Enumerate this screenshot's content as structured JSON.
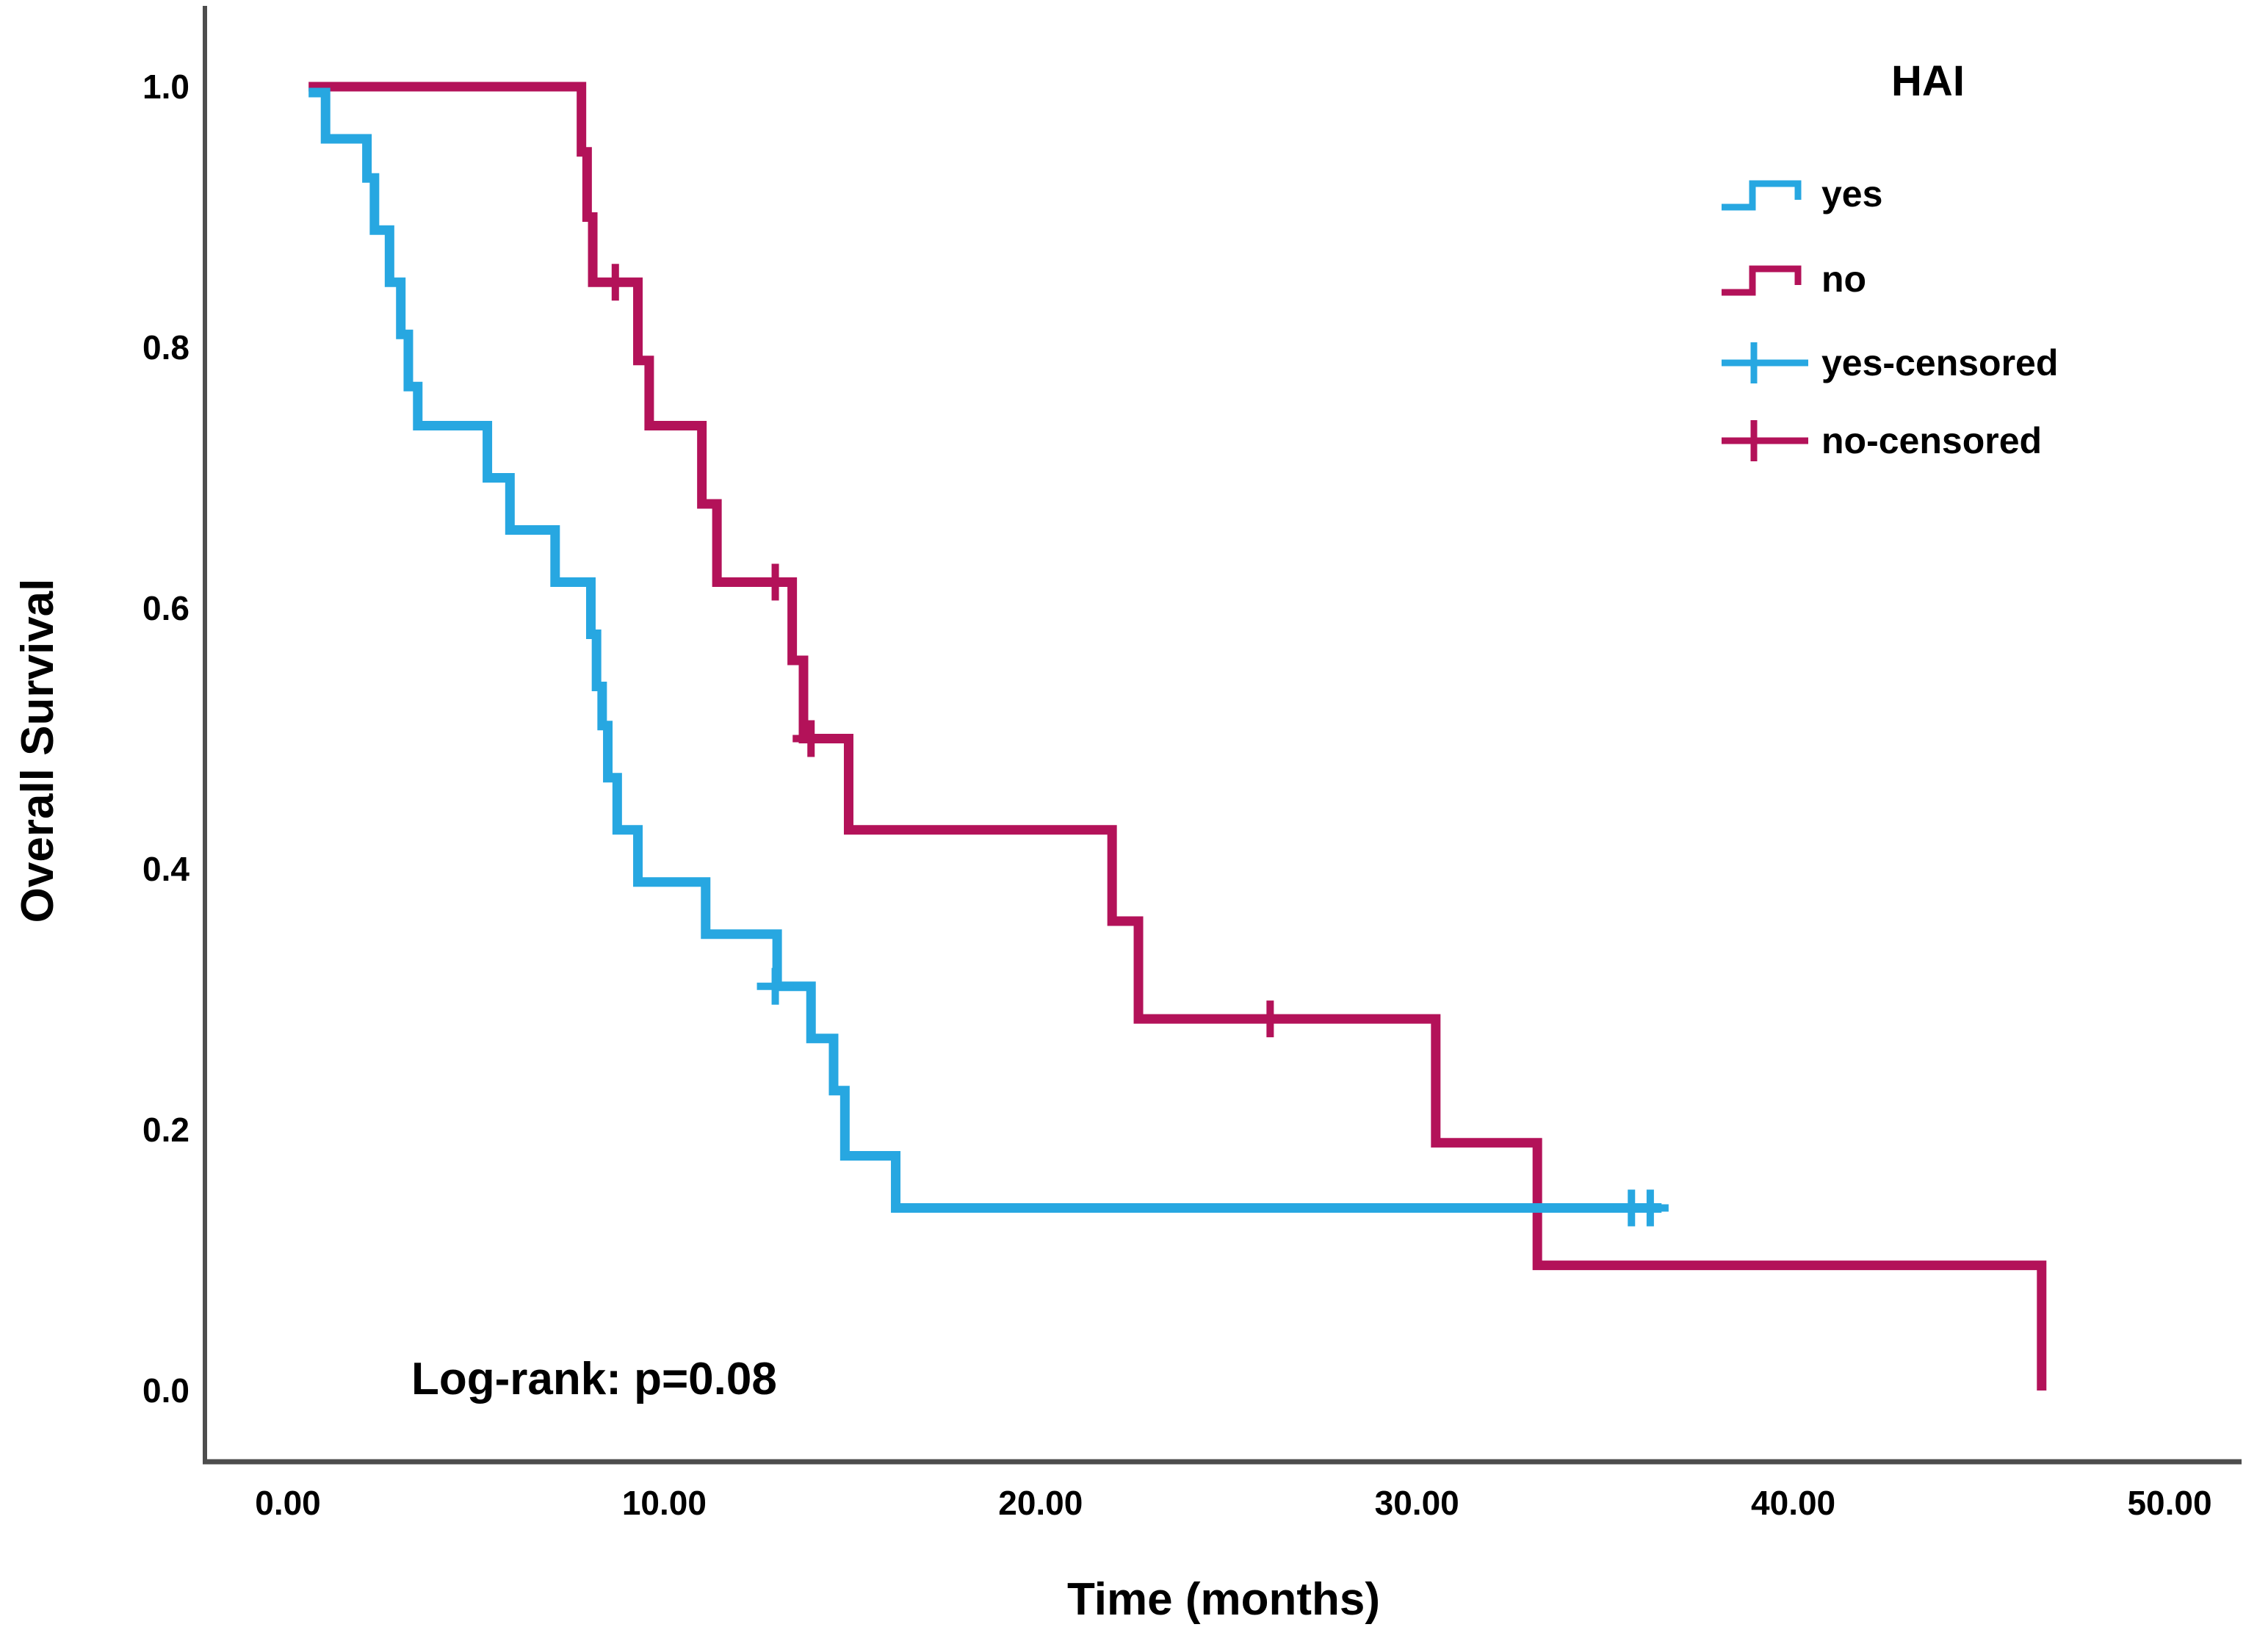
{
  "page": {
    "background": "#ffffff"
  },
  "legend": {
    "title": "HAI",
    "items": [
      {
        "id": "yes",
        "label": "yes",
        "type": "step",
        "color": "#27A7E1"
      },
      {
        "id": "no",
        "label": "no",
        "type": "step",
        "color": "#B31259"
      },
      {
        "id": "yes-censored",
        "label": "yes-censored",
        "type": "censor",
        "color": "#27A7E1"
      },
      {
        "id": "no-censored",
        "label": "no-censored",
        "type": "censor",
        "color": "#B31259"
      }
    ]
  },
  "chart_data": {
    "type": "line",
    "subtype": "kaplan-meier-step",
    "title": "",
    "xlabel": "Time (months)",
    "ylabel": "Overall Survival",
    "annotation": "Log-rank: p=0.08",
    "grid": false,
    "legend_position": "top-right",
    "xlim": [
      -2.2,
      52
    ],
    "ylim": [
      0.0,
      1.0
    ],
    "x_ticks": [
      {
        "v": 0,
        "label": "0.00"
      },
      {
        "v": 10,
        "label": "10.00"
      },
      {
        "v": 20,
        "label": "20.00"
      },
      {
        "v": 30,
        "label": "30.00"
      },
      {
        "v": 40,
        "label": "40.00"
      },
      {
        "v": 50,
        "label": "50.00"
      }
    ],
    "y_ticks": [
      {
        "v": 1.0,
        "label": "1.0"
      },
      {
        "v": 0.8,
        "label": "0.8"
      },
      {
        "v": 0.6,
        "label": "0.6"
      },
      {
        "v": 0.4,
        "label": "0.4"
      },
      {
        "v": 0.2,
        "label": "0.2"
      },
      {
        "v": 0.0,
        "label": "0.0"
      }
    ],
    "series": [
      {
        "name": "no",
        "group": "HAI = no",
        "color": "#B31259",
        "start": {
          "t": 0.55,
          "s": 1.0
        },
        "end_t": 46.65,
        "steps": [
          {
            "t": 7.8,
            "s": 0.95
          },
          {
            "t": 7.95,
            "s": 0.9
          },
          {
            "t": 8.1,
            "s": 0.85
          },
          {
            "t": 9.3,
            "s": 0.79
          },
          {
            "t": 9.6,
            "s": 0.74
          },
          {
            "t": 11.0,
            "s": 0.68
          },
          {
            "t": 11.4,
            "s": 0.62
          },
          {
            "t": 13.4,
            "s": 0.56
          },
          {
            "t": 13.7,
            "s": 0.5
          },
          {
            "t": 14.9,
            "s": 0.43
          },
          {
            "t": 21.9,
            "s": 0.36
          },
          {
            "t": 22.6,
            "s": 0.285
          },
          {
            "t": 30.5,
            "s": 0.19
          },
          {
            "t": 33.2,
            "s": 0.096
          },
          {
            "t": 46.6,
            "s": 0.0
          }
        ],
        "censored": [
          {
            "t": 8.7,
            "s": 0.85
          },
          {
            "t": 12.95,
            "s": 0.62
          },
          {
            "t": 13.9,
            "s": 0.5
          },
          {
            "t": 26.1,
            "s": 0.285
          }
        ]
      },
      {
        "name": "yes",
        "group": "HAI = yes",
        "color": "#27A7E1",
        "start": {
          "t": 0.55,
          "s": 1.0
        },
        "end_t": 36.5,
        "steps": [
          {
            "t": 1.0,
            "s": 0.96
          },
          {
            "t": 2.1,
            "s": 0.93
          },
          {
            "t": 2.3,
            "s": 0.89
          },
          {
            "t": 2.7,
            "s": 0.85
          },
          {
            "t": 3.0,
            "s": 0.81
          },
          {
            "t": 3.2,
            "s": 0.77
          },
          {
            "t": 3.45,
            "s": 0.74
          },
          {
            "t": 5.3,
            "s": 0.7
          },
          {
            "t": 5.9,
            "s": 0.66
          },
          {
            "t": 7.1,
            "s": 0.62
          },
          {
            "t": 8.05,
            "s": 0.58
          },
          {
            "t": 8.2,
            "s": 0.54
          },
          {
            "t": 8.35,
            "s": 0.51
          },
          {
            "t": 8.5,
            "s": 0.47
          },
          {
            "t": 8.75,
            "s": 0.43
          },
          {
            "t": 9.3,
            "s": 0.39
          },
          {
            "t": 11.1,
            "s": 0.35
          },
          {
            "t": 13.0,
            "s": 0.31
          },
          {
            "t": 13.9,
            "s": 0.27
          },
          {
            "t": 14.5,
            "s": 0.23
          },
          {
            "t": 14.8,
            "s": 0.18
          },
          {
            "t": 16.15,
            "s": 0.14
          }
        ],
        "censored": [
          {
            "t": 12.95,
            "s": 0.31
          },
          {
            "t": 35.7,
            "s": 0.14
          },
          {
            "t": 36.2,
            "s": 0.14
          }
        ]
      }
    ]
  }
}
